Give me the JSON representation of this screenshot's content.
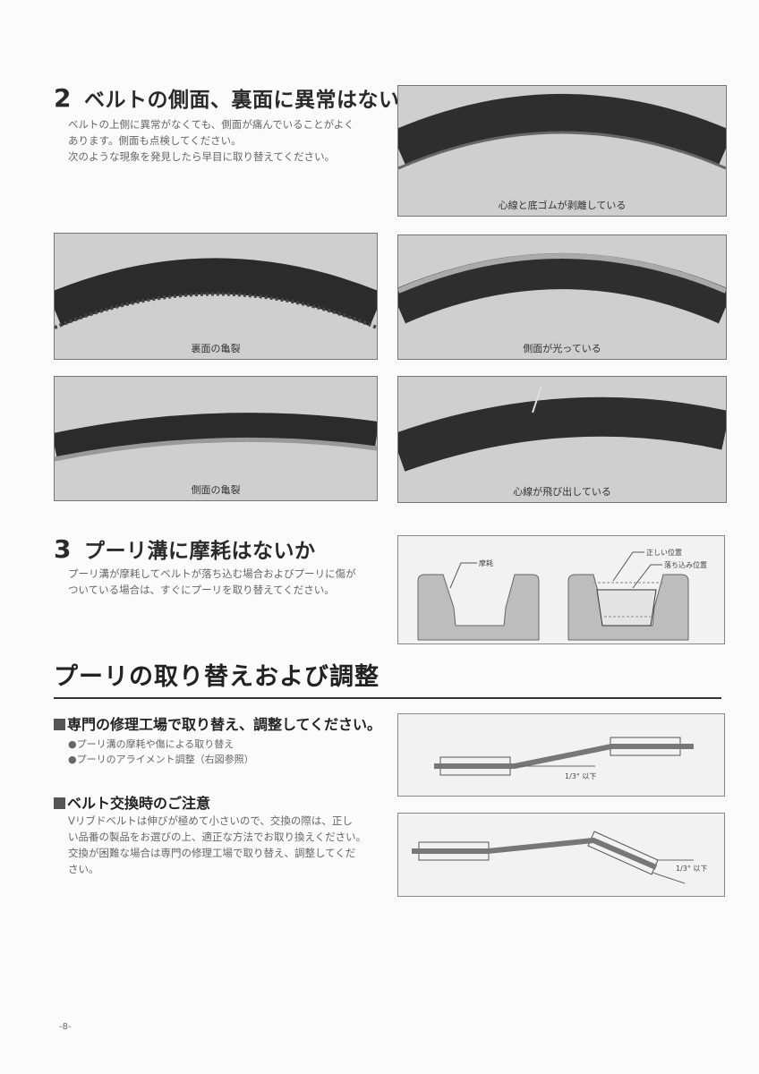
{
  "section2": {
    "number": "2",
    "title": "ベルトの側面、裏面に異常はないか",
    "body": [
      "ベルトの上側に異常がなくても、側面が痛んでいることがよく",
      "あります。側面も点検してください。",
      "次のような現象を発見したら早目に取り替えてください。"
    ]
  },
  "photos": [
    {
      "caption": "心線と底ゴムが剥離している"
    },
    {
      "caption": "裏面の亀裂"
    },
    {
      "caption": "側面が光っている"
    },
    {
      "caption": "側面の亀裂"
    },
    {
      "caption": "心線が飛び出している"
    }
  ],
  "section3": {
    "number": "3",
    "title": "プーリ溝に摩耗はないか",
    "body": [
      "プーリ溝が摩耗してベルトが落ち込む場合およびプーリに傷が",
      "ついている場合は、すぐにプーリを取り替えてください。"
    ],
    "diagram": {
      "wear_label": "摩耗",
      "correct_label": "正しい位置",
      "sunk_label": "落ち込み位置"
    }
  },
  "pulley_section": {
    "title": "プーリの取り替えおよび調整",
    "repair": {
      "title": "専門の修理工場で取り替え、調整してください。",
      "bullets": [
        "●プーリ溝の摩耗や傷による取り替え",
        "●プーリのアライメント調整（右図参照）"
      ]
    },
    "caution": {
      "title": "ベルト交換時のご注意",
      "body": [
        "Vリブドベルトは伸びが極めて小さいので、交換の際は、正し",
        "い品番の製品をお選びの上、適正な方法でお取り換えください。",
        "交換が困難な場合は専門の修理工場で取り替え、調整してくだ",
        "さい。"
      ]
    },
    "alignment_diagrams": [
      {
        "angle_label": "1/3° 以下"
      },
      {
        "angle_label": "1/3° 以下"
      }
    ]
  },
  "page_number": "-8-"
}
